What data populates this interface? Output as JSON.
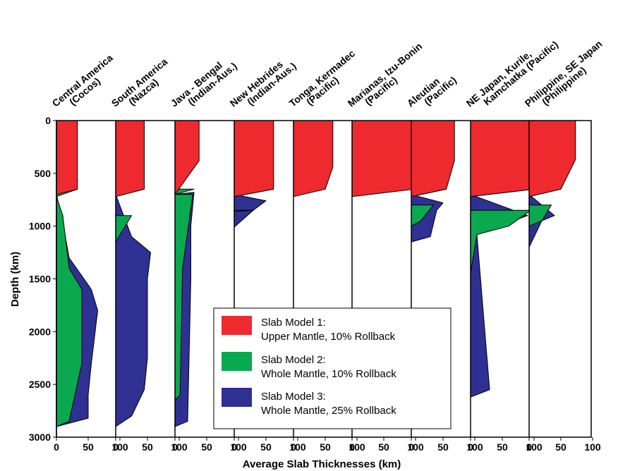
{
  "chart_data": {
    "type": "area",
    "xlabel": "Average Slab Thicknesses (km)",
    "ylabel": "Depth (km)",
    "ylim": [
      0,
      3000
    ],
    "yticks": [
      0,
      500,
      1000,
      1500,
      2000,
      2500,
      3000
    ],
    "xticks": [
      0,
      50,
      100
    ],
    "xlim": [
      0,
      150
    ],
    "grid": false,
    "legend_placement": "lower-center",
    "legend": [
      {
        "series": "model1",
        "line1": "Slab Model 1:",
        "line2": "Upper Mantle, 10% Rollback",
        "color": "#ee2a2e"
      },
      {
        "series": "model2",
        "line1": "Slab Model 2:",
        "line2": "Whole Mantle, 10% Rollback",
        "color": "#0aa84f"
      },
      {
        "series": "model3",
        "line1": "Slab Model 3:",
        "line2": "Whole Mantle, 25% Rollback",
        "color": "#2e3192"
      }
    ],
    "panels": [
      {
        "name": [
          "Central America",
          "(Cocos)"
        ],
        "model1": [
          [
            0,
            33
          ],
          [
            650,
            33
          ],
          [
            700,
            0
          ]
        ],
        "model2": [
          [
            650,
            33
          ],
          [
            720,
            0
          ],
          [
            900,
            10
          ],
          [
            1400,
            20
          ],
          [
            1600,
            40
          ],
          [
            2300,
            40
          ],
          [
            2850,
            20
          ],
          [
            2900,
            0
          ]
        ],
        "model3": [
          [
            700,
            0
          ],
          [
            900,
            8
          ],
          [
            1300,
            20
          ],
          [
            1600,
            55
          ],
          [
            1800,
            65
          ],
          [
            2300,
            55
          ],
          [
            2600,
            50
          ],
          [
            2820,
            50
          ],
          [
            2900,
            0
          ]
        ]
      },
      {
        "name": [
          "South America",
          "(Nazca)"
        ],
        "model1": [
          [
            0,
            45
          ],
          [
            650,
            45
          ],
          [
            720,
            0
          ]
        ],
        "model2": [
          [
            650,
            45
          ],
          [
            720,
            0
          ],
          [
            1150,
            0
          ],
          [
            900,
            25
          ]
        ],
        "model3": [
          [
            700,
            0
          ],
          [
            1100,
            25
          ],
          [
            1250,
            55
          ],
          [
            1500,
            50
          ],
          [
            2250,
            50
          ],
          [
            2550,
            45
          ],
          [
            2800,
            25
          ],
          [
            2900,
            0
          ]
        ]
      },
      {
        "name": [
          "Java - Bengal",
          "(Indian-Aus.)"
        ],
        "model1": [
          [
            0,
            38
          ],
          [
            380,
            38
          ],
          [
            700,
            0
          ]
        ],
        "model2": [
          [
            650,
            30
          ],
          [
            700,
            0
          ],
          [
            2650,
            0
          ],
          [
            2600,
            8
          ],
          [
            1400,
            12
          ],
          [
            700,
            28
          ]
        ],
        "model3": [
          [
            700,
            0
          ],
          [
            680,
            30
          ],
          [
            1000,
            25
          ],
          [
            1500,
            25
          ],
          [
            2850,
            20
          ],
          [
            2900,
            0
          ]
        ]
      },
      {
        "name": [
          "New Hebrides",
          "(Indian-Aus.)"
        ],
        "model1": [
          [
            0,
            62
          ],
          [
            650,
            62
          ],
          [
            720,
            0
          ]
        ],
        "model2": [
          [
            650,
            62
          ],
          [
            720,
            0
          ],
          [
            860,
            0
          ],
          [
            850,
            30
          ]
        ],
        "model3": [
          [
            700,
            0
          ],
          [
            760,
            50
          ],
          [
            850,
            30
          ],
          [
            1010,
            0
          ]
        ]
      },
      {
        "name": [
          "Tonga, Kermadec",
          "(Pacific)"
        ],
        "model1": [
          [
            0,
            62
          ],
          [
            440,
            62
          ],
          [
            650,
            50
          ],
          [
            720,
            0
          ]
        ],
        "model2": [],
        "model3": []
      },
      {
        "name": [
          "Marianas, Izu-Bonin",
          "(Pacific)"
        ],
        "model1": [
          [
            0,
            100
          ],
          [
            390,
            100
          ],
          [
            650,
            98
          ],
          [
            720,
            0
          ]
        ],
        "model2": [],
        "model3": []
      },
      {
        "name": [
          "Aleutian",
          "(Pacific)"
        ],
        "model1": [
          [
            0,
            68
          ],
          [
            380,
            68
          ],
          [
            650,
            55
          ],
          [
            720,
            0
          ]
        ],
        "model2": [
          [
            650,
            55
          ],
          [
            720,
            0
          ],
          [
            1000,
            0
          ],
          [
            950,
            15
          ],
          [
            800,
            35
          ]
        ],
        "model3": [
          [
            700,
            0
          ],
          [
            780,
            50
          ],
          [
            850,
            40
          ],
          [
            1100,
            30
          ],
          [
            1150,
            0
          ]
        ]
      },
      {
        "name": [
          "NE Japan, Kurile,",
          "Kamchatka (Pacific)"
        ],
        "model1": [
          [
            0,
            100
          ],
          [
            650,
            100
          ],
          [
            720,
            0
          ]
        ],
        "model2": [
          [
            650,
            100
          ],
          [
            720,
            0
          ],
          [
            1440,
            0
          ],
          [
            1080,
            10
          ],
          [
            1000,
            60
          ],
          [
            850,
            95
          ]
        ],
        "model3": [
          [
            700,
            0
          ],
          [
            900,
            90
          ],
          [
            1080,
            10
          ],
          [
            2550,
            30
          ],
          [
            2620,
            0
          ]
        ]
      },
      {
        "name": [
          "Philippine, SE Japan",
          "(Philippine)"
        ],
        "model1": [
          [
            0,
            73
          ],
          [
            370,
            73
          ],
          [
            650,
            50
          ],
          [
            720,
            0
          ]
        ],
        "model2": [
          [
            650,
            50
          ],
          [
            720,
            0
          ],
          [
            1000,
            0
          ],
          [
            950,
            20
          ],
          [
            800,
            35
          ]
        ],
        "model3": [
          [
            700,
            0
          ],
          [
            900,
            40
          ],
          [
            950,
            20
          ],
          [
            1200,
            0
          ],
          [
            2900,
            0
          ]
        ]
      }
    ]
  }
}
